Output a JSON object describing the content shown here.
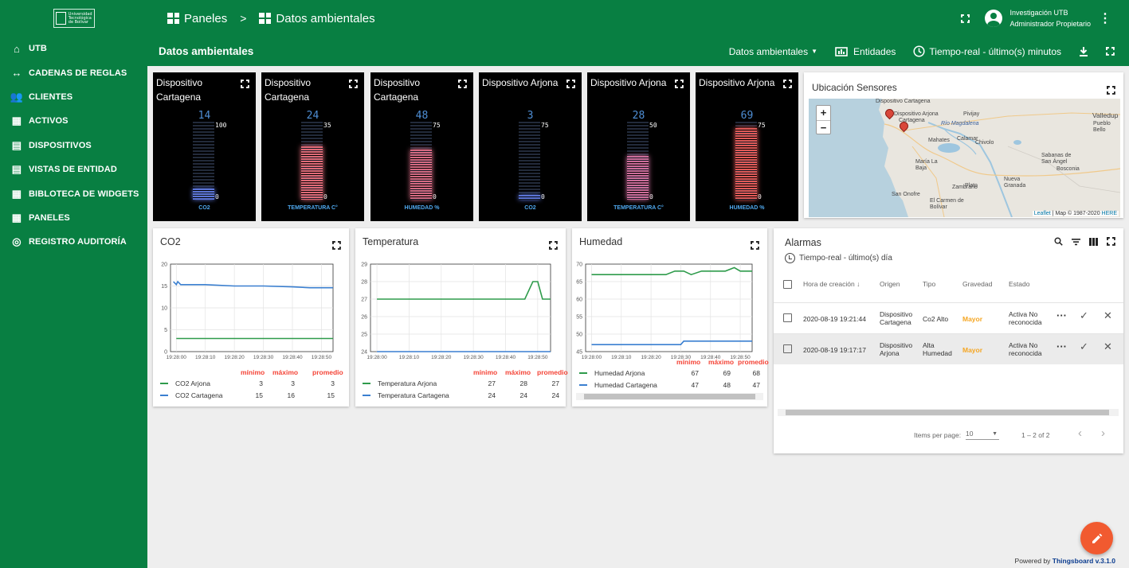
{
  "sidebar": {
    "logo_text": "Universidad Tecnológica de Bolívar",
    "items": [
      {
        "label": "UTB",
        "icon": "home-icon"
      },
      {
        "label": "CADENAS DE REGLAS",
        "icon": "rule-chain-icon"
      },
      {
        "label": "CLIENTES",
        "icon": "customers-icon"
      },
      {
        "label": "ACTIVOS",
        "icon": "assets-icon"
      },
      {
        "label": "DISPOSITIVOS",
        "icon": "devices-icon"
      },
      {
        "label": "VISTAS DE ENTIDAD",
        "icon": "entity-views-icon"
      },
      {
        "label": "BIBLOTECA DE WIDGETS",
        "icon": "widgets-library-icon"
      },
      {
        "label": "PANELES",
        "icon": "dashboards-icon"
      },
      {
        "label": "REGISTRO AUDITORÍA",
        "icon": "audit-log-icon"
      }
    ]
  },
  "header": {
    "breadcrumb": [
      "Paneles",
      "Datos ambientales"
    ],
    "separator": ">",
    "user_name": "Investigación UTB",
    "user_role": "Administrador Propietario"
  },
  "toolbar": {
    "title": "Datos ambientales",
    "state_select": "Datos ambientales",
    "entities": "Entidades",
    "timewindow": "Tiempo-real - último(s) minutos"
  },
  "gauges": [
    {
      "title": "Dispositivo Cartagena",
      "value": "14",
      "max": "100",
      "min": "0",
      "fraction": 0.14,
      "label": "CO2",
      "color": "#5b74d6"
    },
    {
      "title": "Dispositivo Cartagena",
      "value": "24",
      "max": "35",
      "min": "0",
      "fraction": 0.6857,
      "label": "TEMPERATURA C°",
      "color": "#e06b78"
    },
    {
      "title": "Dispositivo Cartagena",
      "value": "48",
      "max": "75",
      "min": "0",
      "fraction": 0.64,
      "label": "HUMEDAD %",
      "color": "#d46a82"
    },
    {
      "title": "Dispositivo Arjona",
      "value": "3",
      "max": "75",
      "min": "0",
      "fraction": 0.04,
      "label": "CO2",
      "color": "#5b74d6"
    },
    {
      "title": "Dispositivo Arjona",
      "value": "28",
      "max": "50",
      "min": "0",
      "fraction": 0.56,
      "label": "TEMPERATURA C°",
      "color": "#cc6d9a"
    },
    {
      "title": "Dispositivo Arjona",
      "value": "69",
      "max": "75",
      "min": "0",
      "fraction": 0.92,
      "label": "HUMEDAD %",
      "color": "#e05a58"
    }
  ],
  "map": {
    "title": "Ubicación Sensores",
    "zoom_in": "+",
    "zoom_out": "−",
    "labels": [
      "Dispositivo Cartagena",
      "Dispositivo Arjona",
      "Cartagena",
      "Valledup",
      "Pueblo Bello",
      "Pivijay",
      "Río Magdalena",
      "Mahates",
      "Calamar",
      "Sabanas de San Ángel",
      "Bosconia",
      "María La Baja",
      "Plato",
      "Nueva Granada",
      "San Onofre",
      "El Carmen de Bolívar",
      "Zambrano",
      "Chivolo"
    ],
    "attribution_link": "Leaflet",
    "attribution": "| Map © 1987-2020",
    "attribution_here": "HERE"
  },
  "charts": [
    {
      "title": "CO2",
      "chart_data": {
        "type": "line",
        "x": [
          "19:28:00",
          "19:28:10",
          "19:28:20",
          "19:28:30",
          "19:28:40",
          "19:28:50"
        ],
        "ylim": [
          0,
          20
        ],
        "yticks": [
          0,
          5,
          10,
          15,
          20
        ],
        "series": [
          {
            "name": "CO2 Arjona",
            "color": "#2e9b4b",
            "points": [
              [
                0,
                3
              ],
              [
                1,
                3
              ],
              [
                2,
                3
              ],
              [
                3,
                3
              ],
              [
                4,
                3
              ],
              [
                5,
                3
              ],
              [
                5.4,
                3
              ]
            ]
          },
          {
            "name": "CO2 Cartagena",
            "color": "#3a7fd0",
            "points": [
              [
                -0.1,
                16
              ],
              [
                0,
                15.3
              ],
              [
                0.05,
                16
              ],
              [
                0.15,
                15.3
              ],
              [
                1,
                15.3
              ],
              [
                2,
                15
              ],
              [
                3,
                15
              ],
              [
                4,
                14.8
              ],
              [
                4.6,
                14.6
              ],
              [
                5.4,
                14.6
              ]
            ]
          }
        ]
      },
      "stats_headers": [
        "mínimo",
        "máximo",
        "promedio"
      ],
      "stats": [
        [
          "3",
          "3",
          "3"
        ],
        [
          "15",
          "16",
          "15"
        ]
      ]
    },
    {
      "title": "Temperatura",
      "chart_data": {
        "type": "line",
        "x": [
          "19:28:00",
          "19:28:10",
          "19:28:20",
          "19:28:30",
          "19:28:40",
          "19:28:50"
        ],
        "ylim": [
          24,
          29
        ],
        "yticks": [
          24,
          25,
          26,
          27,
          28,
          29
        ],
        "series": [
          {
            "name": "Temperatura Arjona",
            "color": "#2e9b4b",
            "points": [
              [
                0,
                27
              ],
              [
                1,
                27
              ],
              [
                2,
                27
              ],
              [
                3,
                27
              ],
              [
                4,
                27
              ],
              [
                4.6,
                27
              ],
              [
                4.85,
                28
              ],
              [
                5.0,
                28
              ],
              [
                5.15,
                27
              ],
              [
                5.4,
                27
              ]
            ]
          },
          {
            "name": "Temperatura Cartagena",
            "color": "#3a7fd0",
            "points": [
              [
                0,
                24
              ],
              [
                1,
                24
              ],
              [
                2,
                24
              ],
              [
                3,
                24
              ],
              [
                4,
                24
              ],
              [
                5,
                24
              ],
              [
                5.4,
                24
              ]
            ]
          }
        ]
      },
      "stats_headers": [
        "mínimo",
        "máximo",
        "promedio"
      ],
      "stats": [
        [
          "27",
          "28",
          "27"
        ],
        [
          "24",
          "24",
          "24"
        ]
      ]
    },
    {
      "title": "Humedad",
      "chart_data": {
        "type": "line",
        "x": [
          "19:28:00",
          "19:28:10",
          "19:28:20",
          "19:28:30",
          "19:28:40",
          "19:28:50"
        ],
        "ylim": [
          45,
          70
        ],
        "yticks": [
          45,
          50,
          55,
          60,
          65,
          70
        ],
        "series": [
          {
            "name": "Humedad Arjona",
            "color": "#2e9b4b",
            "points": [
              [
                0,
                67
              ],
              [
                2.5,
                67
              ],
              [
                2.8,
                68
              ],
              [
                3.1,
                68
              ],
              [
                3.35,
                67
              ],
              [
                3.7,
                68
              ],
              [
                4.5,
                68
              ],
              [
                4.8,
                69
              ],
              [
                5.0,
                68
              ],
              [
                5.4,
                68
              ]
            ]
          },
          {
            "name": "Humedad Cartagena",
            "color": "#3a7fd0",
            "points": [
              [
                0,
                47
              ],
              [
                3.0,
                47
              ],
              [
                3.1,
                48
              ],
              [
                5.4,
                48
              ]
            ]
          }
        ]
      },
      "stats_headers": [
        "mínimo",
        "máximo",
        "promedio"
      ],
      "stats": [
        [
          "67",
          "69",
          "68"
        ],
        [
          "47",
          "48",
          "47"
        ]
      ]
    }
  ],
  "alarms": {
    "title": "Alarmas",
    "timewindow": "Tiempo-real - último(s) día",
    "columns": [
      "Hora de creación",
      "Origen",
      "Tipo",
      "Gravedad",
      "Estado"
    ],
    "rows": [
      {
        "time": "2020-08-19 19:21:44",
        "origin": "Dispositivo Cartagena",
        "type": "Co2 Alto",
        "severity": "Mayor",
        "status": "Activa No reconocida"
      },
      {
        "time": "2020-08-19 19:17:17",
        "origin": "Dispositivo Arjona",
        "type": "Alta Humedad",
        "severity": "Mayor",
        "status": "Activa No reconocida"
      }
    ],
    "items_per_page_label": "Items per page:",
    "items_per_page": "10",
    "range": "1 – 2 of 2"
  },
  "footer": {
    "powered": "Powered by",
    "brand": "Thingsboard v.3.1.0"
  },
  "colors": {
    "primary": "#087f42",
    "accent": "#f15a30",
    "severity_major": "#f5a623",
    "stats_header": "#f44336"
  }
}
